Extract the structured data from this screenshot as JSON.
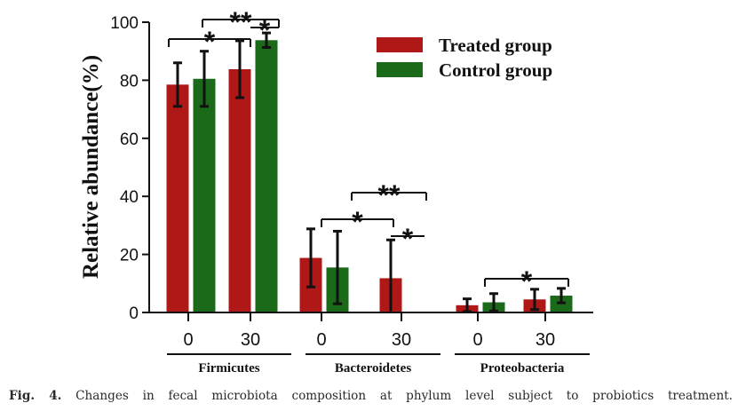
{
  "chart_data": {
    "type": "bar",
    "ylabel": "Relative abundance(%)",
    "ylim": [
      0,
      100
    ],
    "yticks": [
      "0",
      "20",
      "40",
      "60",
      "80",
      "100"
    ],
    "groups": [
      "Firmicutes",
      "Bacteroidetes",
      "Proteobacteria"
    ],
    "timepoints": [
      "0",
      "30"
    ],
    "legend_position": "top-right",
    "series": [
      {
        "name": "Treated group",
        "color": "#b01818",
        "values": [
          [
            78.5,
            83.8
          ],
          [
            18.8,
            11.8
          ],
          [
            2.5,
            4.5
          ]
        ],
        "errors": [
          [
            7.5,
            9.8
          ],
          [
            10.0,
            13.2
          ],
          [
            2.2,
            3.5
          ]
        ]
      },
      {
        "name": "Control group",
        "color": "#1a6a1a",
        "values": [
          [
            80.5,
            93.8
          ],
          [
            15.5,
            0
          ],
          [
            3.5,
            5.8
          ]
        ],
        "errors": [
          [
            9.5,
            2.5
          ],
          [
            12.5,
            0
          ],
          [
            3.0,
            2.5
          ]
        ]
      }
    ],
    "significance": [
      {
        "label": "*",
        "group": 0
      },
      {
        "label": "**",
        "group": 0
      },
      {
        "label": "*",
        "group": 0
      },
      {
        "label": "*",
        "group": 1
      },
      {
        "label": "**",
        "group": 1
      },
      {
        "label": "*",
        "group": 1
      },
      {
        "label": "*",
        "group": 2
      }
    ]
  },
  "caption": {
    "label": "Fig. 4.",
    "text": "Changes in fecal microbiota composition at phylum level subject to probiotics treatment."
  }
}
